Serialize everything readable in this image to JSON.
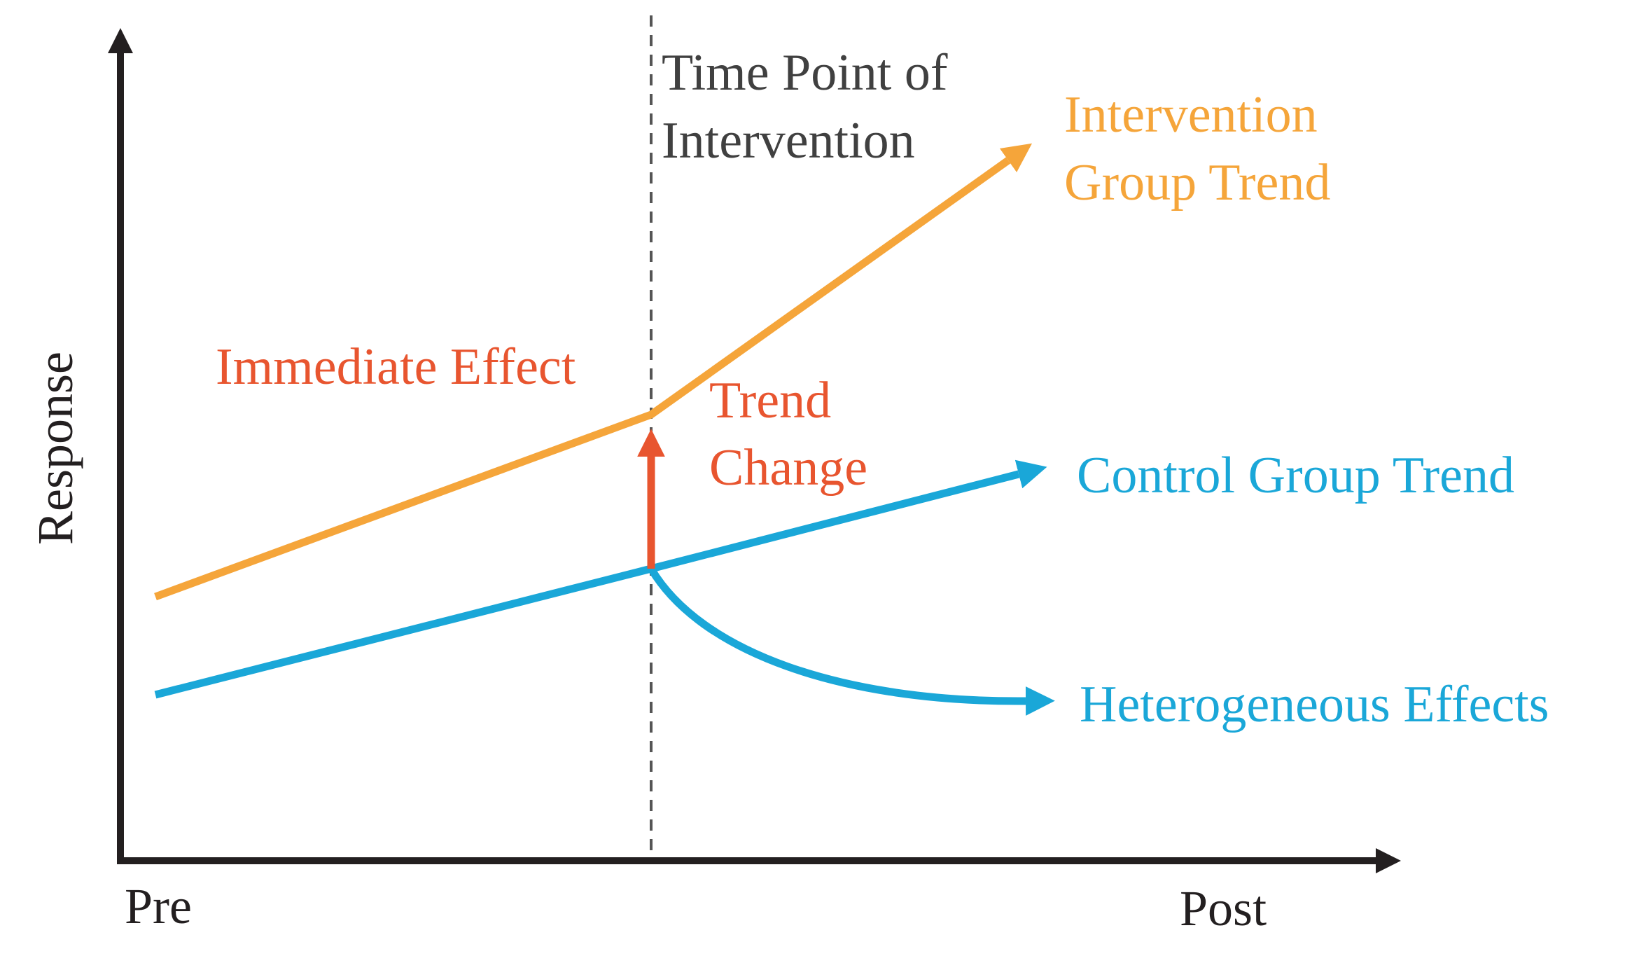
{
  "axes": {
    "y_label": "Response",
    "x_start_label": "Pre",
    "x_end_label": "Post"
  },
  "intervention": {
    "label_line1": "Time Point of",
    "label_line2": "Intervention"
  },
  "curves": {
    "intervention": {
      "label_line1": "Intervention",
      "label_line2": "Group Trend"
    },
    "control": {
      "label": "Control Group Trend"
    },
    "heterogeneous": {
      "label": "Heterogeneous Effects"
    }
  },
  "effects": {
    "immediate": "Immediate Effect",
    "trend_change_line1": "Trend",
    "trend_change_line2": "Change"
  },
  "colors": {
    "axis": "#231f20",
    "intervention": "#f5a53a",
    "control": "#1aa7d8",
    "effect": "#e8552f",
    "divider": "#555555",
    "divider_text": "#404040"
  }
}
